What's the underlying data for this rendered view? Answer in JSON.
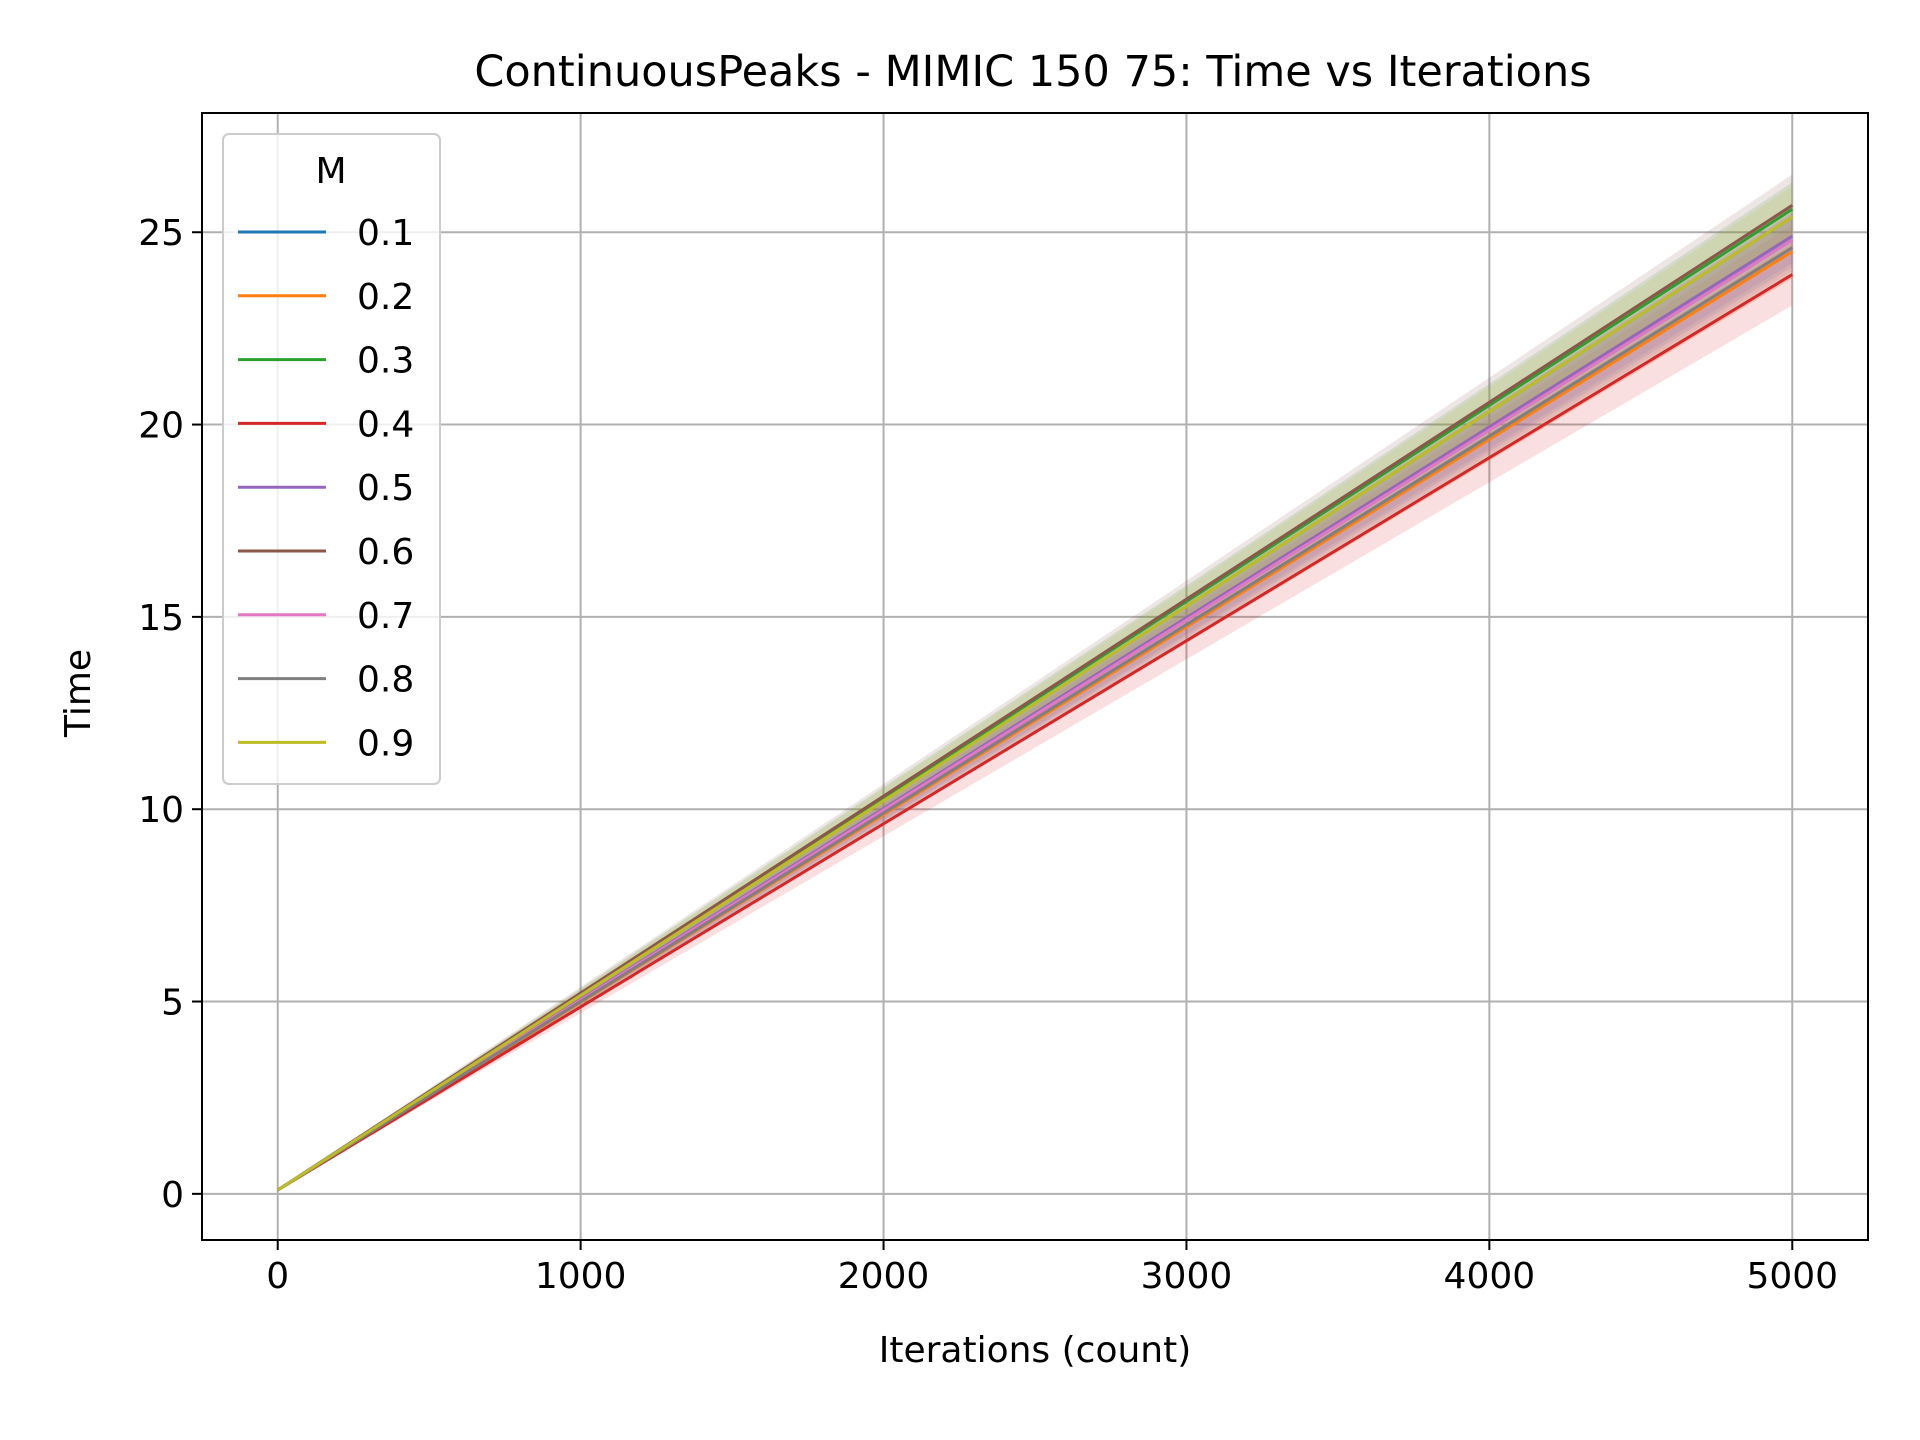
{
  "chart_data": {
    "type": "line",
    "title": "ContinuousPeaks - MIMIC 150 75: Time vs Iterations",
    "xlabel": "Iterations (count)",
    "ylabel": "Time",
    "xlim": [
      -250,
      5250
    ],
    "ylim": [
      -1.2,
      28.1
    ],
    "xticks": [
      0,
      1000,
      2000,
      3000,
      4000,
      5000
    ],
    "yticks": [
      0,
      5,
      10,
      15,
      20,
      25
    ],
    "grid": true,
    "legend_title": "M",
    "legend_position": "top-left",
    "x": [
      0,
      5000
    ],
    "series": [
      {
        "name": "0.1",
        "color": "#1f77b4",
        "values": [
          0.1,
          24.8
        ],
        "band": [
          0.7,
          0.7
        ]
      },
      {
        "name": "0.2",
        "color": "#ff7f0e",
        "values": [
          0.1,
          24.5
        ],
        "band": [
          0.7,
          0.7
        ]
      },
      {
        "name": "0.3",
        "color": "#2ca02c",
        "values": [
          0.1,
          25.6
        ],
        "band": [
          0.7,
          0.7
        ]
      },
      {
        "name": "0.4",
        "color": "#d62728",
        "values": [
          0.1,
          23.9
        ],
        "band": [
          0.8,
          0.8
        ]
      },
      {
        "name": "0.5",
        "color": "#9467bd",
        "values": [
          0.1,
          24.9
        ],
        "band": [
          0.7,
          0.7
        ]
      },
      {
        "name": "0.6",
        "color": "#8c564b",
        "values": [
          0.1,
          25.7
        ],
        "band": [
          0.8,
          0.8
        ]
      },
      {
        "name": "0.7",
        "color": "#e377c2",
        "values": [
          0.1,
          24.8
        ],
        "band": [
          0.8,
          0.8
        ]
      },
      {
        "name": "0.8",
        "color": "#7f7f7f",
        "values": [
          0.1,
          24.6
        ],
        "band": [
          0.8,
          0.8
        ]
      },
      {
        "name": "0.9",
        "color": "#bcbd22",
        "values": [
          0.1,
          25.4
        ],
        "band": [
          0.8,
          0.8
        ]
      }
    ]
  }
}
